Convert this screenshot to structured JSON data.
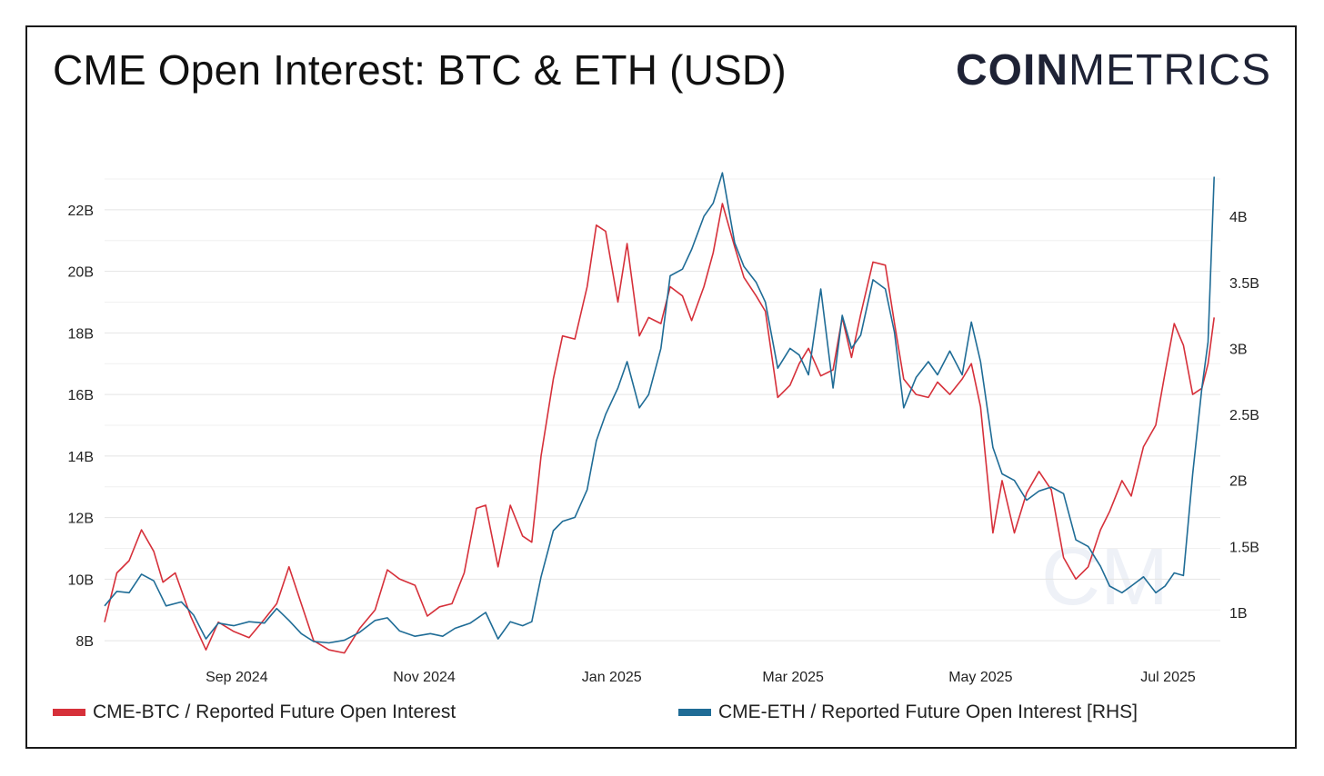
{
  "header": {
    "title": "CME Open Interest: BTC & ETH (USD)",
    "logo_bold": "COIN",
    "logo_light": "METRICS"
  },
  "watermark": "CM",
  "chart_data": {
    "type": "line",
    "title": "CME Open Interest: BTC & ETH (USD)",
    "x_range": [
      "2024-07-20",
      "2025-07-18"
    ],
    "x_ticks": [
      {
        "date": "2024-09-01",
        "label": "Sep 2024"
      },
      {
        "date": "2024-11-01",
        "label": "Nov 2024"
      },
      {
        "date": "2025-01-01",
        "label": "Jan 2025"
      },
      {
        "date": "2025-03-01",
        "label": "Mar 2025"
      },
      {
        "date": "2025-05-01",
        "label": "May 2025"
      },
      {
        "date": "2025-07-01",
        "label": "Jul 2025"
      }
    ],
    "y_left": {
      "range": [
        7.5,
        23.5
      ],
      "unit": "B",
      "ticks": [
        8,
        10,
        12,
        14,
        16,
        18,
        20,
        22
      ],
      "tick_labels": [
        "8B",
        "10B",
        "12B",
        "14B",
        "16B",
        "18B",
        "20B",
        "22B"
      ]
    },
    "y_right": {
      "range": [
        0.67,
        4.4
      ],
      "unit": "B",
      "ticks": [
        1,
        1.5,
        2,
        2.5,
        3,
        3.5,
        4
      ],
      "tick_labels": [
        "1B",
        "1.5B",
        "2B",
        "2.5B",
        "3B",
        "3.5B",
        "4B"
      ]
    },
    "grid": true,
    "legend_position": "bottom",
    "series": [
      {
        "name": "CME-BTC / Reported Future Open Interest",
        "axis": "left",
        "color": "#d6303a",
        "points": [
          [
            "2024-07-20",
            8.6
          ],
          [
            "2024-07-24",
            10.2
          ],
          [
            "2024-07-28",
            10.6
          ],
          [
            "2024-08-01",
            11.6
          ],
          [
            "2024-08-05",
            10.9
          ],
          [
            "2024-08-08",
            9.9
          ],
          [
            "2024-08-12",
            10.2
          ],
          [
            "2024-08-17",
            8.8
          ],
          [
            "2024-08-22",
            7.7
          ],
          [
            "2024-08-26",
            8.6
          ],
          [
            "2024-08-31",
            8.3
          ],
          [
            "2024-09-05",
            8.1
          ],
          [
            "2024-09-10",
            8.7
          ],
          [
            "2024-09-14",
            9.2
          ],
          [
            "2024-09-18",
            10.4
          ],
          [
            "2024-09-22",
            9.2
          ],
          [
            "2024-09-26",
            8.0
          ],
          [
            "2024-10-01",
            7.7
          ],
          [
            "2024-10-06",
            7.6
          ],
          [
            "2024-10-11",
            8.4
          ],
          [
            "2024-10-16",
            9.0
          ],
          [
            "2024-10-20",
            10.3
          ],
          [
            "2024-10-24",
            10.0
          ],
          [
            "2024-10-29",
            9.8
          ],
          [
            "2024-11-02",
            8.8
          ],
          [
            "2024-11-06",
            9.1
          ],
          [
            "2024-11-10",
            9.2
          ],
          [
            "2024-11-14",
            10.2
          ],
          [
            "2024-11-18",
            12.3
          ],
          [
            "2024-11-21",
            12.4
          ],
          [
            "2024-11-25",
            10.4
          ],
          [
            "2024-11-29",
            12.4
          ],
          [
            "2024-12-03",
            11.4
          ],
          [
            "2024-12-06",
            11.2
          ],
          [
            "2024-12-09",
            14.0
          ],
          [
            "2024-12-13",
            16.5
          ],
          [
            "2024-12-16",
            17.9
          ],
          [
            "2024-12-20",
            17.8
          ],
          [
            "2024-12-24",
            19.5
          ],
          [
            "2024-12-27",
            21.5
          ],
          [
            "2024-12-30",
            21.3
          ],
          [
            "2025-01-03",
            19.0
          ],
          [
            "2025-01-06",
            20.9
          ],
          [
            "2025-01-10",
            17.9
          ],
          [
            "2025-01-13",
            18.5
          ],
          [
            "2025-01-17",
            18.3
          ],
          [
            "2025-01-20",
            19.5
          ],
          [
            "2025-01-24",
            19.2
          ],
          [
            "2025-01-27",
            18.4
          ],
          [
            "2025-01-31",
            19.5
          ],
          [
            "2025-02-03",
            20.6
          ],
          [
            "2025-02-06",
            22.2
          ],
          [
            "2025-02-10",
            20.8
          ],
          [
            "2025-02-13",
            19.8
          ],
          [
            "2025-02-17",
            19.2
          ],
          [
            "2025-02-20",
            18.7
          ],
          [
            "2025-02-24",
            15.9
          ],
          [
            "2025-02-28",
            16.3
          ],
          [
            "2025-03-03",
            17.0
          ],
          [
            "2025-03-06",
            17.5
          ],
          [
            "2025-03-10",
            16.6
          ],
          [
            "2025-03-14",
            16.8
          ],
          [
            "2025-03-17",
            18.5
          ],
          [
            "2025-03-20",
            17.2
          ],
          [
            "2025-03-23",
            18.6
          ],
          [
            "2025-03-27",
            20.3
          ],
          [
            "2025-03-31",
            20.2
          ],
          [
            "2025-04-03",
            18.3
          ],
          [
            "2025-04-06",
            16.5
          ],
          [
            "2025-04-10",
            16.0
          ],
          [
            "2025-04-14",
            15.9
          ],
          [
            "2025-04-17",
            16.4
          ],
          [
            "2025-04-21",
            16.0
          ],
          [
            "2025-04-25",
            16.5
          ],
          [
            "2025-04-28",
            17.0
          ],
          [
            "2025-05-01",
            15.6
          ],
          [
            "2025-05-05",
            11.5
          ],
          [
            "2025-05-08",
            13.2
          ],
          [
            "2025-05-12",
            11.5
          ],
          [
            "2025-05-16",
            12.8
          ],
          [
            "2025-05-20",
            13.5
          ],
          [
            "2025-05-24",
            12.9
          ],
          [
            "2025-05-28",
            10.7
          ],
          [
            "2025-06-01",
            10.0
          ],
          [
            "2025-06-05",
            10.4
          ],
          [
            "2025-06-09",
            11.6
          ],
          [
            "2025-06-12",
            12.2
          ],
          [
            "2025-06-16",
            13.2
          ],
          [
            "2025-06-19",
            12.7
          ],
          [
            "2025-06-23",
            14.3
          ],
          [
            "2025-06-27",
            15.0
          ],
          [
            "2025-06-30",
            16.7
          ],
          [
            "2025-07-03",
            18.3
          ],
          [
            "2025-07-06",
            17.6
          ],
          [
            "2025-07-09",
            16.0
          ],
          [
            "2025-07-12",
            16.2
          ],
          [
            "2025-07-14",
            17.0
          ],
          [
            "2025-07-16",
            18.5
          ]
        ]
      },
      {
        "name": "CME-ETH / Reported Future Open Interest [RHS]",
        "axis": "right",
        "color": "#1f6c96",
        "points": [
          [
            "2024-07-20",
            1.05
          ],
          [
            "2024-07-24",
            1.16
          ],
          [
            "2024-07-28",
            1.15
          ],
          [
            "2024-08-01",
            1.29
          ],
          [
            "2024-08-05",
            1.24
          ],
          [
            "2024-08-09",
            1.05
          ],
          [
            "2024-08-14",
            1.08
          ],
          [
            "2024-08-18",
            0.98
          ],
          [
            "2024-08-22",
            0.8
          ],
          [
            "2024-08-26",
            0.92
          ],
          [
            "2024-08-31",
            0.9
          ],
          [
            "2024-09-05",
            0.93
          ],
          [
            "2024-09-10",
            0.92
          ],
          [
            "2024-09-14",
            1.03
          ],
          [
            "2024-09-18",
            0.94
          ],
          [
            "2024-09-22",
            0.84
          ],
          [
            "2024-09-26",
            0.78
          ],
          [
            "2024-10-01",
            0.77
          ],
          [
            "2024-10-06",
            0.79
          ],
          [
            "2024-10-11",
            0.85
          ],
          [
            "2024-10-16",
            0.94
          ],
          [
            "2024-10-20",
            0.96
          ],
          [
            "2024-10-24",
            0.86
          ],
          [
            "2024-10-29",
            0.82
          ],
          [
            "2024-11-03",
            0.84
          ],
          [
            "2024-11-07",
            0.82
          ],
          [
            "2024-11-11",
            0.88
          ],
          [
            "2024-11-16",
            0.92
          ],
          [
            "2024-11-21",
            1.0
          ],
          [
            "2024-11-25",
            0.8
          ],
          [
            "2024-11-29",
            0.93
          ],
          [
            "2024-12-03",
            0.9
          ],
          [
            "2024-12-06",
            0.93
          ],
          [
            "2024-12-09",
            1.27
          ],
          [
            "2024-12-13",
            1.62
          ],
          [
            "2024-12-16",
            1.69
          ],
          [
            "2024-12-20",
            1.72
          ],
          [
            "2024-12-24",
            1.93
          ],
          [
            "2024-12-27",
            2.3
          ],
          [
            "2024-12-30",
            2.5
          ],
          [
            "2025-01-03",
            2.7
          ],
          [
            "2025-01-06",
            2.9
          ],
          [
            "2025-01-10",
            2.55
          ],
          [
            "2025-01-13",
            2.65
          ],
          [
            "2025-01-17",
            3.0
          ],
          [
            "2025-01-20",
            3.55
          ],
          [
            "2025-01-24",
            3.6
          ],
          [
            "2025-01-27",
            3.75
          ],
          [
            "2025-01-31",
            4.0
          ],
          [
            "2025-02-03",
            4.1
          ],
          [
            "2025-02-06",
            4.33
          ],
          [
            "2025-02-10",
            3.8
          ],
          [
            "2025-02-13",
            3.62
          ],
          [
            "2025-02-17",
            3.5
          ],
          [
            "2025-02-20",
            3.35
          ],
          [
            "2025-02-24",
            2.85
          ],
          [
            "2025-02-28",
            3.0
          ],
          [
            "2025-03-03",
            2.95
          ],
          [
            "2025-03-06",
            2.8
          ],
          [
            "2025-03-10",
            3.45
          ],
          [
            "2025-03-14",
            2.7
          ],
          [
            "2025-03-17",
            3.25
          ],
          [
            "2025-03-20",
            3.0
          ],
          [
            "2025-03-23",
            3.1
          ],
          [
            "2025-03-27",
            3.52
          ],
          [
            "2025-03-31",
            3.45
          ],
          [
            "2025-04-03",
            3.12
          ],
          [
            "2025-04-06",
            2.55
          ],
          [
            "2025-04-10",
            2.78
          ],
          [
            "2025-04-14",
            2.9
          ],
          [
            "2025-04-17",
            2.8
          ],
          [
            "2025-04-21",
            2.98
          ],
          [
            "2025-04-25",
            2.8
          ],
          [
            "2025-04-28",
            3.2
          ],
          [
            "2025-05-01",
            2.9
          ],
          [
            "2025-05-05",
            2.25
          ],
          [
            "2025-05-08",
            2.05
          ],
          [
            "2025-05-12",
            2.0
          ],
          [
            "2025-05-16",
            1.85
          ],
          [
            "2025-05-20",
            1.92
          ],
          [
            "2025-05-24",
            1.95
          ],
          [
            "2025-05-28",
            1.9
          ],
          [
            "2025-06-01",
            1.55
          ],
          [
            "2025-06-05",
            1.5
          ],
          [
            "2025-06-09",
            1.35
          ],
          [
            "2025-06-12",
            1.2
          ],
          [
            "2025-06-16",
            1.15
          ],
          [
            "2025-06-19",
            1.2
          ],
          [
            "2025-06-23",
            1.27
          ],
          [
            "2025-06-27",
            1.15
          ],
          [
            "2025-06-30",
            1.2
          ],
          [
            "2025-07-03",
            1.3
          ],
          [
            "2025-07-06",
            1.28
          ],
          [
            "2025-07-09",
            2.05
          ],
          [
            "2025-07-12",
            2.7
          ],
          [
            "2025-07-14",
            3.05
          ],
          [
            "2025-07-16",
            4.3
          ]
        ]
      }
    ]
  }
}
